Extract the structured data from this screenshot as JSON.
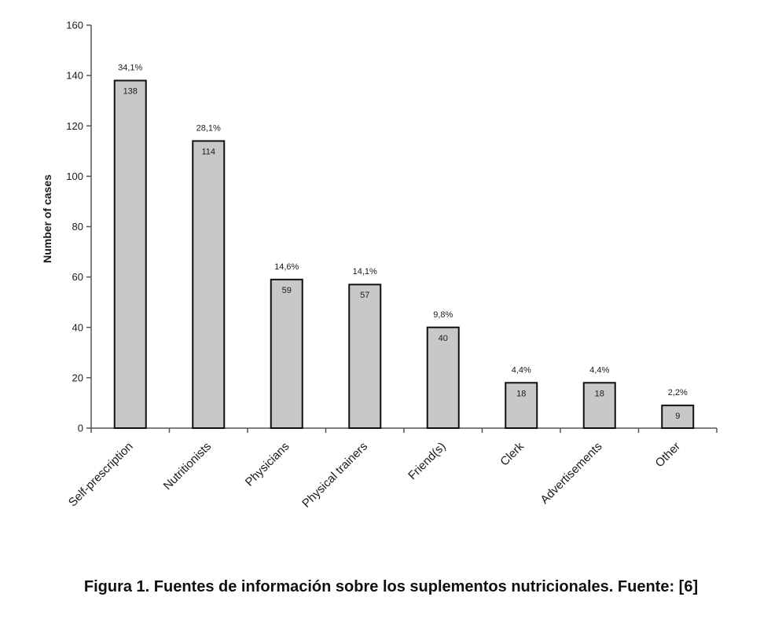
{
  "chart_data": {
    "type": "bar",
    "categories": [
      "Self-prescription",
      "Nutritionists",
      "Physicians",
      "Physical trainers",
      "Friend(s)",
      "Clerk",
      "Advertisements",
      "Other"
    ],
    "values": [
      138,
      114,
      59,
      57,
      40,
      18,
      18,
      9
    ],
    "value_labels": [
      "138",
      "114",
      "59",
      "57",
      "40",
      "18",
      "18",
      "9"
    ],
    "percent_labels": [
      "34,1%",
      "28,1%",
      "14,6%",
      "14,1%",
      "9,8%",
      "4,4%",
      "4,4%",
      "2,2%"
    ],
    "ylabel": "Number of cases",
    "xlabel": "",
    "ylim": [
      0,
      160
    ],
    "yticks": [
      0,
      20,
      40,
      60,
      80,
      100,
      120,
      140,
      160
    ],
    "grid": false,
    "legend": "none",
    "colors": {
      "bar_fill": "#c8c8c8",
      "bar_stroke": "#111111",
      "axis": "#555555"
    }
  },
  "caption": "Figura 1. Fuentes de información sobre los suplementos nutricionales. Fuente: [6]"
}
